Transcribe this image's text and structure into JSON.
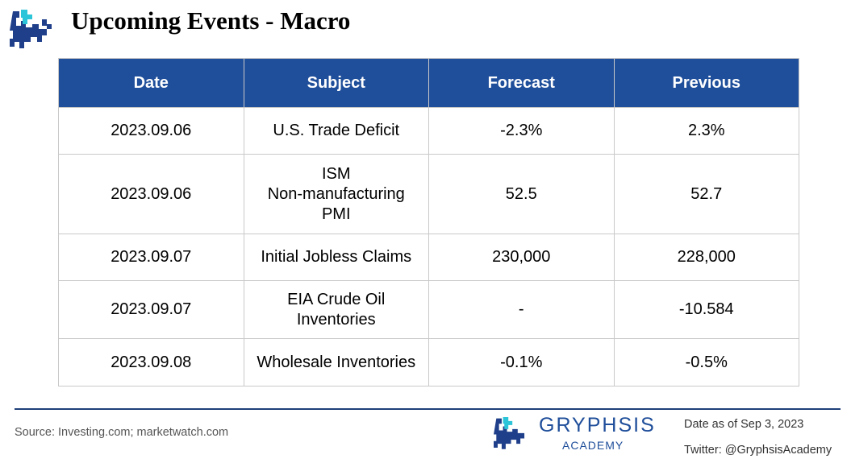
{
  "header": {
    "title": "Upcoming Events - Macro"
  },
  "table": {
    "columns": [
      "Date",
      "Subject",
      "Forecast",
      "Previous"
    ],
    "rows": [
      [
        "2023.09.06",
        [
          "U.S. Trade Deficit"
        ],
        "-2.3%",
        "2.3%"
      ],
      [
        "2023.09.06",
        [
          "ISM",
          "Non-manufacturing",
          "PMI"
        ],
        "52.5",
        "52.7"
      ],
      [
        "2023.09.07",
        [
          "Initial Jobless Claims"
        ],
        "230,000",
        "228,000"
      ],
      [
        "2023.09.07",
        [
          "EIA Crude Oil",
          "Inventories"
        ],
        "-",
        "-10.584"
      ],
      [
        "2023.09.08",
        [
          "Wholesale Inventories"
        ],
        "-0.1%",
        "-0.5%"
      ]
    ]
  },
  "footer": {
    "source": "Source: Investing.com; marketwatch.com",
    "brand": "GRYPHSIS",
    "brand_sub": "ACADEMY",
    "date_note": "Date as of Sep 3, 2023",
    "twitter": "Twitter: @GryphsisAcademy"
  }
}
